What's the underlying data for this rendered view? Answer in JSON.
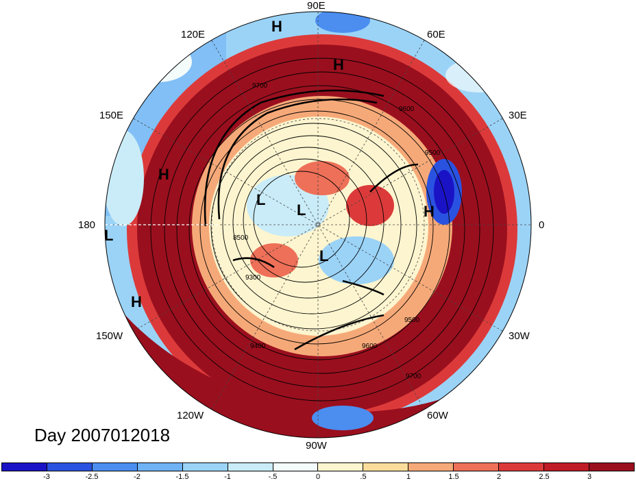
{
  "map": {
    "day_label": "Day 2007012018",
    "longitude_labels": {
      "lon_90e": "90E",
      "lon_60e": "60E",
      "lon_30e": "30E",
      "lon_0": "0",
      "lon_30w": "30W",
      "lon_60w": "60W",
      "lon_90w": "90W",
      "lon_120w": "120W",
      "lon_150w": "150W",
      "lon_180": "180",
      "lon_150e": "150E",
      "lon_120e": "120E"
    },
    "pressure_systems": [
      "H",
      "H",
      "H",
      "H",
      "H",
      "L",
      "L",
      "L",
      "L"
    ],
    "contour_labels": [
      "9700",
      "9600",
      "9500",
      "9400",
      "9300",
      "8500"
    ]
  },
  "colorbar": {
    "colors": [
      "#1a13c6",
      "#2a52e0",
      "#4b8ef0",
      "#6fb2f5",
      "#9bd3f7",
      "#c9ecf8",
      "#f4fbfb",
      "#fdf5cf",
      "#fbdd9b",
      "#f6a978",
      "#ee7058",
      "#dc3a3a",
      "#bf1c27",
      "#9a0f1e"
    ],
    "ticks": [
      "-3",
      "-2.5",
      "-2",
      "-1.5",
      "-1",
      "-.5",
      "0",
      ".5",
      "1",
      "1.5",
      "2",
      "2.5",
      "3"
    ]
  }
}
